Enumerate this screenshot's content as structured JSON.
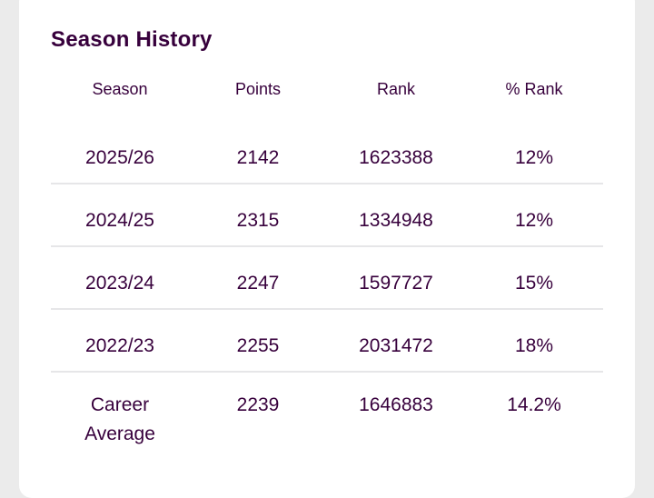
{
  "title": "Season History",
  "columns": [
    "Season",
    "Points",
    "Rank",
    "% Rank"
  ],
  "rows": [
    {
      "season": "2025/26",
      "points": "2142",
      "rank": "1623388",
      "pct": "12%"
    },
    {
      "season": "2024/25",
      "points": "2315",
      "rank": "1334948",
      "pct": "12%"
    },
    {
      "season": "2023/24",
      "points": "2247",
      "rank": "1597727",
      "pct": "15%"
    },
    {
      "season": "2022/23",
      "points": "2255",
      "rank": "2031472",
      "pct": "18%"
    }
  ],
  "average": {
    "season": "Career Average",
    "points": "2239",
    "rank": "1646883",
    "pct": "14.2%"
  }
}
